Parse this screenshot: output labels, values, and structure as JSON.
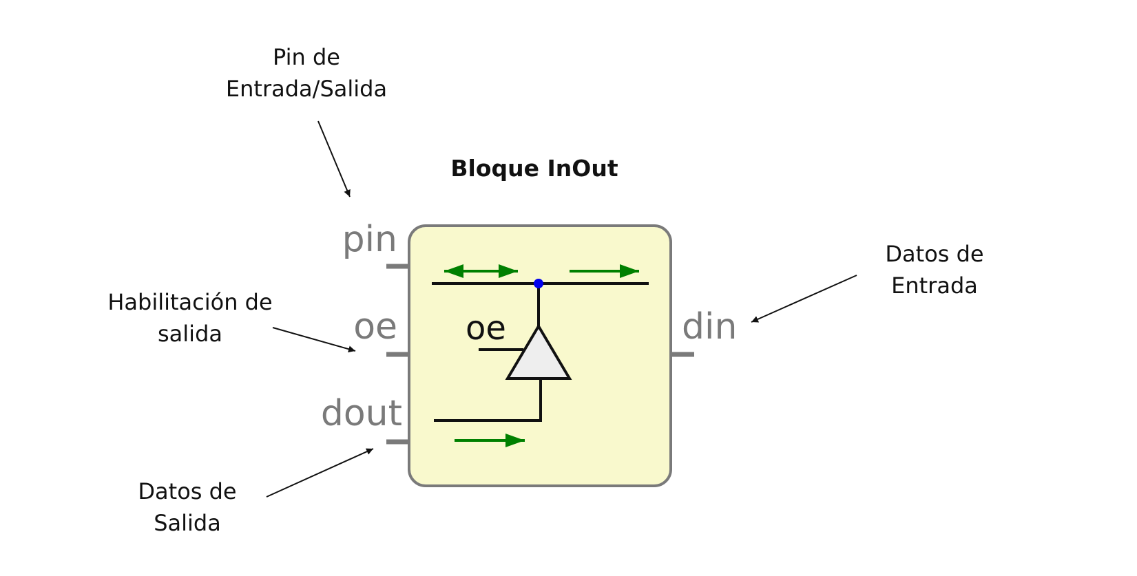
{
  "title": "Bloque InOut",
  "callouts": {
    "pin": [
      "Pin de",
      "Entrada/Salida"
    ],
    "oe": [
      "Habilitación de",
      "salida"
    ],
    "dout": [
      "Datos de",
      "Salida"
    ],
    "din": [
      "Datos de",
      "Entrada"
    ]
  },
  "ports": {
    "pin": "pin",
    "oe": "oe",
    "dout": "dout",
    "din": "din"
  },
  "inner_label": "oe",
  "colors": {
    "block_fill": "#f9f9cd",
    "block_stroke": "#7a7a7a",
    "arrow_green": "#008000",
    "node_blue": "#0000ee",
    "buffer_fill": "#eeeeee"
  }
}
